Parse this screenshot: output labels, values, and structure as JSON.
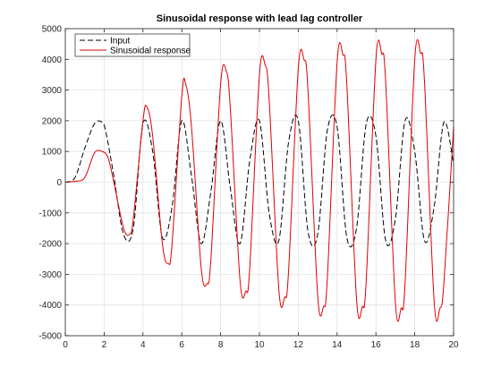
{
  "chart_data": {
    "type": "line",
    "title": "Sinusoidal response with lead lag controller",
    "xlabel": "",
    "ylabel": "",
    "xlim": [
      0,
      20
    ],
    "ylim": [
      -5000,
      5000
    ],
    "xticks": [
      "0",
      "2",
      "4",
      "6",
      "8",
      "10",
      "12",
      "14",
      "16",
      "18",
      "20"
    ],
    "yticks": [
      "-5000",
      "-4000",
      "-3000",
      "-2000",
      "-1000",
      "0",
      "1000",
      "2000",
      "3000",
      "4000",
      "5000"
    ],
    "grid": true,
    "legend_position": "top-left",
    "series": [
      {
        "name": "Input",
        "color": "#000000",
        "style": "dashed",
        "x": [
          0,
          0.5,
          1.0,
          1.5,
          1.9,
          2.1,
          2.5,
          3.0,
          3.5,
          4.0,
          4.5,
          5.0,
          5.5,
          6.0,
          6.5,
          7.0,
          7.5,
          8.0,
          8.5,
          9.0,
          9.5,
          10.0,
          10.5,
          11.0,
          11.5,
          12.0,
          12.5,
          13.0,
          13.5,
          14.0,
          14.5,
          15.0,
          15.5,
          16.0,
          16.5,
          17.0,
          17.5,
          18.0,
          18.5,
          19.0,
          19.5,
          20.0
        ],
        "y": [
          0,
          150,
          1100,
          1900,
          1950,
          1600,
          200,
          -1700,
          -1500,
          1900,
          1000,
          -1800,
          -800,
          2000,
          200,
          -2000,
          -300,
          2000,
          -200,
          -2000,
          700,
          2000,
          -1000,
          -1900,
          1300,
          2000,
          -1600,
          -1700,
          1700,
          1800,
          -1800,
          -1500,
          1900,
          1500,
          -1900,
          -1200,
          2000,
          1000,
          -1900,
          -800,
          1950,
          600
        ]
      },
      {
        "name": "Sinusoidal response",
        "color": "#e00000",
        "style": "solid",
        "x": [
          0,
          0.5,
          1.0,
          1.5,
          1.9,
          2.2,
          2.5,
          3.0,
          3.3,
          3.5,
          4.0,
          4.2,
          4.5,
          5.0,
          5.3,
          5.5,
          6.0,
          6.2,
          6.5,
          7.0,
          7.3,
          7.5,
          8.0,
          8.3,
          8.5,
          9.0,
          9.3,
          9.5,
          10.0,
          10.3,
          10.5,
          11.0,
          11.3,
          11.5,
          12.0,
          12.3,
          12.5,
          13.0,
          13.3,
          13.5,
          14.0,
          14.3,
          14.5,
          15.0,
          15.3,
          15.5,
          16.0,
          16.3,
          16.5,
          17.0,
          17.3,
          17.5,
          18.0,
          18.3,
          18.5,
          19.0,
          19.3,
          19.5,
          20.0
        ],
        "y": [
          0,
          30,
          150,
          950,
          1000,
          800,
          0,
          -1500,
          -1700,
          -1200,
          2000,
          2450,
          1500,
          -2000,
          -2650,
          -2000,
          2800,
          3200,
          1800,
          -2800,
          -3300,
          -2500,
          3200,
          3600,
          2400,
          -3200,
          -3550,
          -2800,
          3500,
          3800,
          2700,
          -3500,
          -3750,
          -2900,
          3700,
          3980,
          3000,
          -3700,
          -4050,
          -3100,
          3900,
          4150,
          3200,
          -3800,
          -4050,
          -3200,
          4000,
          4180,
          3300,
          -3900,
          -4100,
          -3300,
          4000,
          4200,
          3300,
          -3900,
          -4100,
          -3300,
          1800
        ]
      }
    ]
  }
}
